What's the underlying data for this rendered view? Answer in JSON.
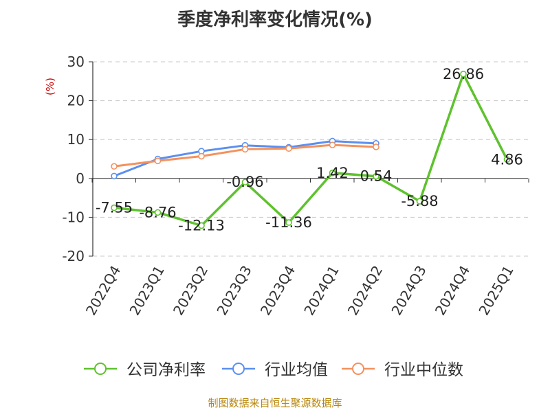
{
  "chart_data": {
    "type": "line",
    "title": "季度净利率变化情况(%)",
    "ylabel": "(%)",
    "xlabel": "",
    "categories": [
      "2022Q4",
      "2023Q1",
      "2023Q2",
      "2023Q3",
      "2023Q4",
      "2024Q1",
      "2024Q2",
      "2024Q3",
      "2024Q4",
      "2025Q1"
    ],
    "ylim": [
      -20,
      30
    ],
    "yticks": [
      -20,
      -10,
      0,
      10,
      20,
      30
    ],
    "grid": true,
    "legend_position": "bottom",
    "series": [
      {
        "name": "公司净利率",
        "color": "#5ec22d",
        "values": [
          -7.55,
          -8.76,
          -12.13,
          -0.96,
          -11.36,
          1.42,
          0.54,
          -5.88,
          26.86,
          4.86
        ],
        "labels": [
          "-7.55",
          "-8.76",
          "-12.13",
          "-0.96",
          "-11.36",
          "1.42",
          "0.54",
          "-5.88",
          "26.86",
          "4.86"
        ]
      },
      {
        "name": "行业均值",
        "color": "#5b8ff0",
        "values": [
          0.6,
          5.0,
          7.0,
          8.5,
          8.0,
          9.6,
          9.0,
          null,
          null,
          null
        ]
      },
      {
        "name": "行业中位数",
        "color": "#f5915c",
        "values": [
          3.1,
          4.5,
          5.7,
          7.5,
          7.7,
          8.6,
          8.1,
          null,
          null,
          null
        ]
      }
    ]
  },
  "footer": {
    "source": "制图数据来自恒生聚源数据库"
  }
}
